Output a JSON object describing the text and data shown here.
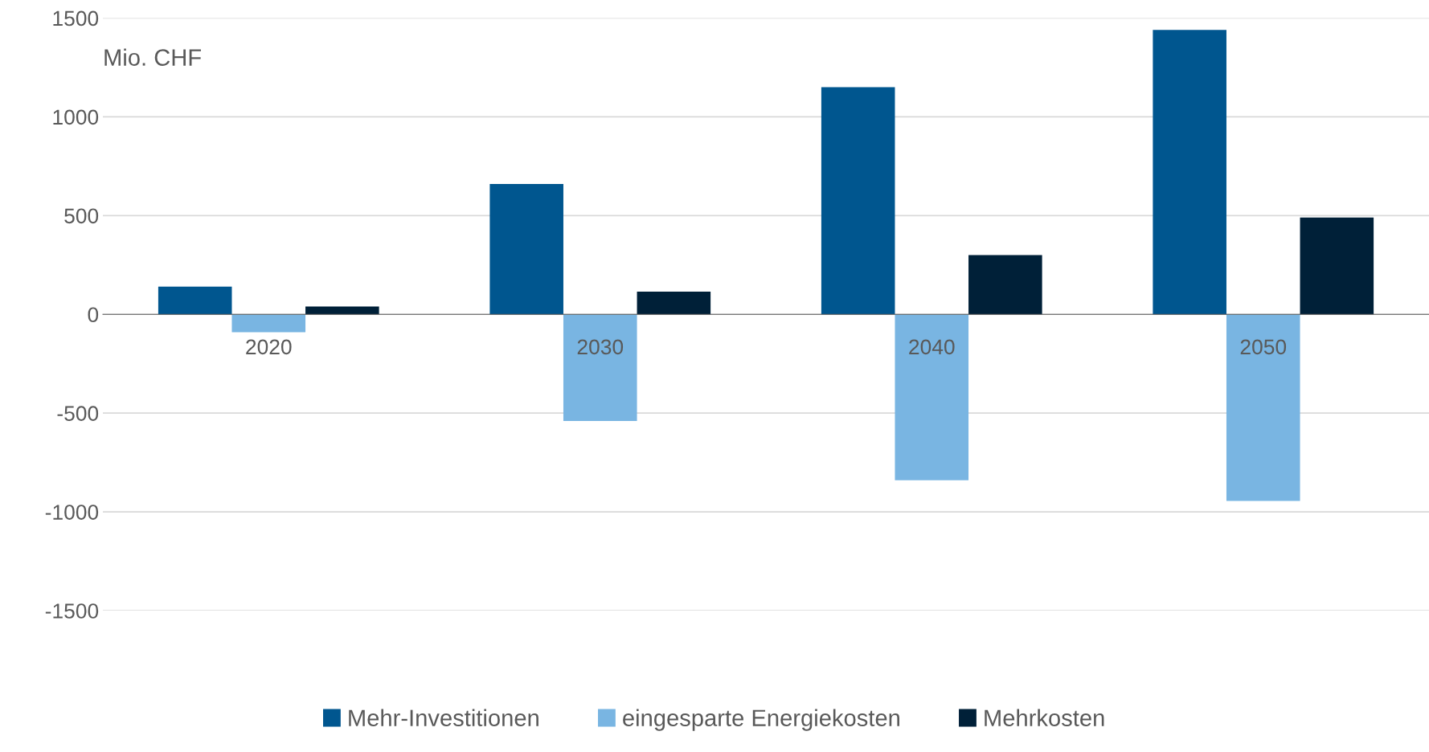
{
  "chart_data": {
    "type": "bar",
    "ylabel": "Mio. CHF",
    "categories": [
      "2020",
      "2030",
      "2040",
      "2050"
    ],
    "series": [
      {
        "name": "Mehr-Investitionen",
        "color": "#00568f",
        "values": [
          140,
          660,
          1150,
          1440
        ]
      },
      {
        "name": "eingesparte Energiekosten",
        "color": "#79b5e2",
        "values": [
          -90,
          -540,
          -840,
          -945
        ]
      },
      {
        "name": "Mehrkosten",
        "color": "#002038",
        "values": [
          40,
          115,
          300,
          490
        ]
      }
    ],
    "ylim": [
      -1500,
      1500
    ],
    "yticks": [
      -1500,
      -1000,
      -500,
      0,
      500,
      1000,
      1500
    ],
    "grid": "y",
    "legend": "bottom"
  }
}
